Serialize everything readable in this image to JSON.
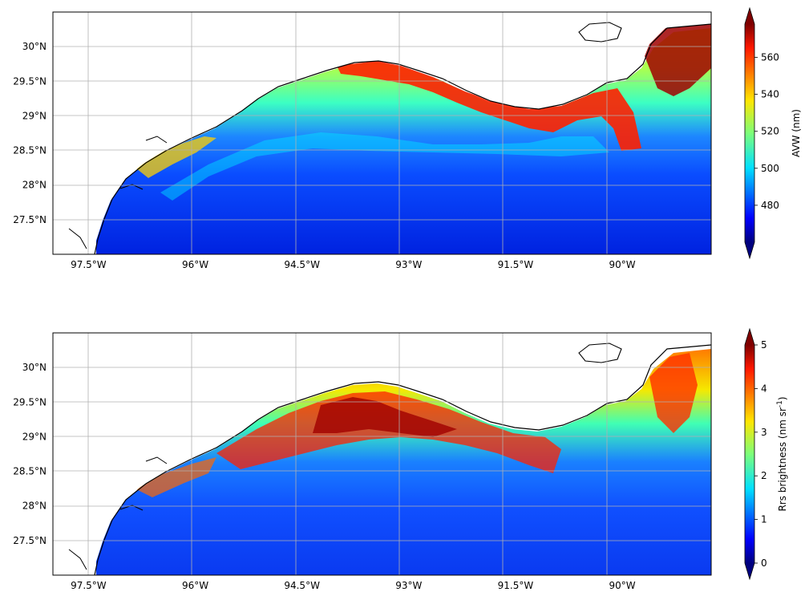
{
  "figure": {
    "panels": [
      {
        "colorbar_label": "AVW (nm)",
        "colorbar_ticks": [
          {
            "value": 480,
            "label": "480"
          },
          {
            "value": 500,
            "label": "500"
          },
          {
            "value": 520,
            "label": "520"
          },
          {
            "value": 540,
            "label": "540"
          },
          {
            "value": 560,
            "label": "560"
          }
        ],
        "colorbar_range": [
          460,
          578
        ],
        "colormap": "jet",
        "extend": "both"
      },
      {
        "colorbar_label": "Rrs brightness (nm sr",
        "colorbar_label_superscript": "-1",
        "colorbar_label_suffix": ")",
        "colorbar_ticks": [
          {
            "value": 0,
            "label": "0"
          },
          {
            "value": 1,
            "label": "1"
          },
          {
            "value": 2,
            "label": "2"
          },
          {
            "value": 3,
            "label": "3"
          },
          {
            "value": 4,
            "label": "4"
          },
          {
            "value": 5,
            "label": "5"
          }
        ],
        "colorbar_range": [
          0,
          5
        ],
        "colormap": "jet",
        "extend": "both"
      }
    ],
    "lon_range": [
      -98.0,
      -88.75
    ],
    "lat_range": [
      27.0,
      30.5
    ],
    "x_ticks": [
      {
        "value": -97.5,
        "label": "97.5°W"
      },
      {
        "value": -96.0,
        "label": "96°W"
      },
      {
        "value": -94.5,
        "label": "94.5°W"
      },
      {
        "value": -93.0,
        "label": "93°W"
      },
      {
        "value": -91.5,
        "label": "91.5°W"
      },
      {
        "value": -90.0,
        "label": "90°W"
      }
    ],
    "y_ticks": [
      {
        "value": 27.5,
        "label": "27.5°N"
      },
      {
        "value": 28.0,
        "label": "28°N"
      },
      {
        "value": 28.5,
        "label": "28.5°N"
      },
      {
        "value": 29.0,
        "label": "29°N"
      },
      {
        "value": 29.5,
        "label": "29.5°N"
      },
      {
        "value": 30.0,
        "label": "30°N"
      }
    ],
    "gridlines": true,
    "colors": {
      "land": "#ffffff",
      "coastline": "#000000",
      "grid": "#b0b0b0"
    }
  }
}
